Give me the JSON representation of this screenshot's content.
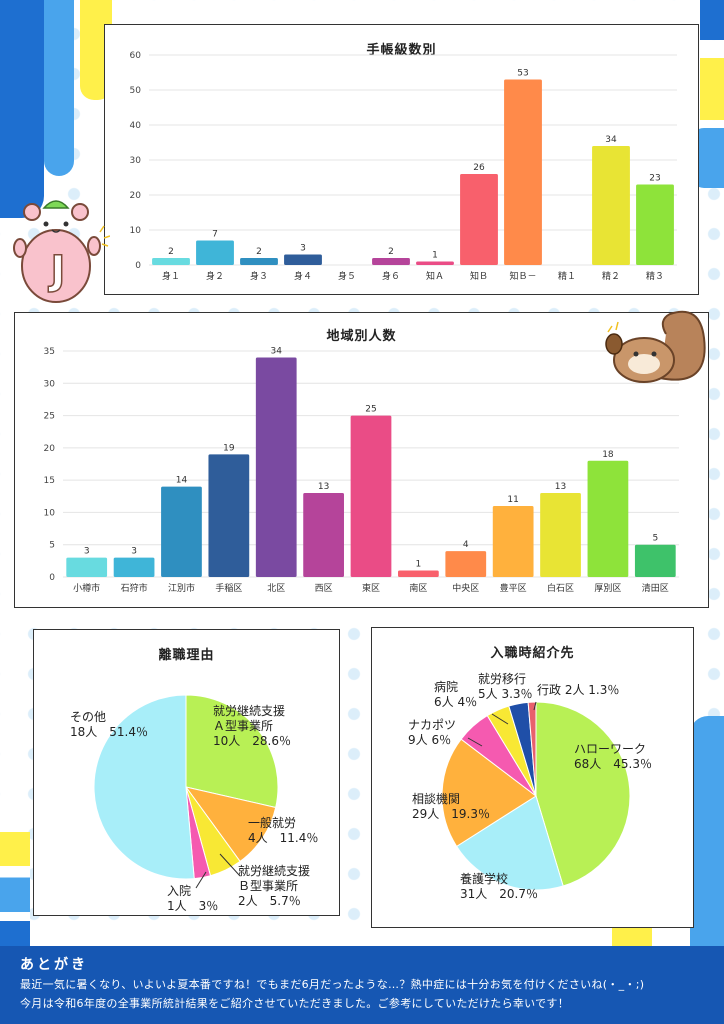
{
  "chart_data": [
    {
      "type": "bar",
      "title": "手帳級数別",
      "categories": [
        "身１",
        "身２",
        "身３",
        "身４",
        "身５",
        "身６",
        "知Ａ",
        "知Ｂ",
        "知Ｂ－",
        "精１",
        "精２",
        "精３"
      ],
      "values": [
        2,
        7,
        2,
        3,
        0,
        2,
        1,
        26,
        53,
        0,
        34,
        23
      ],
      "value_labels": [
        "2",
        "7",
        "2",
        "3",
        "",
        "2",
        "1",
        "26",
        "53",
        "",
        "34",
        "23"
      ],
      "colors": [
        "#68dbe0",
        "#3fb5d8",
        "#2f8fc0",
        "#2f5d9a",
        "#7a4aa1",
        "#b5449a",
        "#ea4c86",
        "#f8606c",
        "#ff8a4a",
        "#ffb13d",
        "#e8e434",
        "#8ee33a"
      ],
      "yticks": [
        "0",
        "10",
        "20",
        "30",
        "40",
        "50",
        "60"
      ],
      "ylim": [
        0,
        60
      ],
      "grid": true
    },
    {
      "type": "bar",
      "title": "地域別人数",
      "categories": [
        "小樽市",
        "石狩市",
        "江別市",
        "手稲区",
        "北区",
        "西区",
        "東区",
        "南区",
        "中央区",
        "豊平区",
        "白石区",
        "厚別区",
        "清田区"
      ],
      "values": [
        3,
        3,
        14,
        19,
        34,
        13,
        25,
        1,
        4,
        11,
        13,
        18,
        5
      ],
      "value_labels": [
        "3",
        "3",
        "14",
        "19",
        "34",
        "13",
        "25",
        "1",
        "4",
        "11",
        "13",
        "18",
        "5"
      ],
      "colors": [
        "#68dbe0",
        "#3fb5d8",
        "#2f8fc0",
        "#2f5d9a",
        "#7a4aa1",
        "#b5449a",
        "#ea4c86",
        "#f8606c",
        "#ff8a4a",
        "#ffb13d",
        "#e8e434",
        "#8ee33a",
        "#3ec26a"
      ],
      "yticks": [
        "0",
        "5",
        "10",
        "15",
        "20",
        "25",
        "30",
        "35"
      ],
      "ylim": [
        0,
        35
      ],
      "grid": true
    },
    {
      "type": "pie",
      "title": "離職理由",
      "slices": [
        {
          "name": "就労継続支援Ａ型事業所",
          "value": 10,
          "percent": 28.6,
          "color": "#b8f055"
        },
        {
          "name": "一般就労",
          "value": 4,
          "percent": 11.4,
          "color": "#ffb13d"
        },
        {
          "name": "就労継続支援Ｂ型事業所",
          "value": 2,
          "percent": 5.7,
          "color": "#f8e834"
        },
        {
          "name": "入院",
          "value": 1,
          "percent": 3,
          "color": "#f55ab0"
        },
        {
          "name": "その他",
          "value": 18,
          "percent": 51.4,
          "color": "#a8eef9"
        }
      ]
    },
    {
      "type": "pie",
      "title": "入職時紹介先",
      "slices": [
        {
          "name": "ハローワーク",
          "value": 68,
          "percent": 45.3,
          "color": "#b8f055"
        },
        {
          "name": "養護学校",
          "value": 31,
          "percent": 20.7,
          "color": "#a8eef9"
        },
        {
          "name": "相談機関",
          "value": 29,
          "percent": 19.3,
          "color": "#ffb13d"
        },
        {
          "name": "ナカポツ",
          "value": 9,
          "percent": 6,
          "color": "#f55ab0"
        },
        {
          "name": "病院",
          "value": 6,
          "percent": 4,
          "color": "#f8e834"
        },
        {
          "name": "就労移行",
          "value": 5,
          "percent": 3.3,
          "color": "#1f4fa8"
        },
        {
          "name": "行政",
          "value": 2,
          "percent": 1.3,
          "color": "#e8606c"
        }
      ]
    }
  ],
  "pie1_labels": {
    "a_line1": "就労継続支援",
    "a_line2": "Ａ型事業所",
    "a_line3": "10人　28.6％",
    "general_line1": "一般就労",
    "general_line2": "4人　11.4％",
    "b_line1": "就労継続支援",
    "b_line2": "Ｂ型事業所",
    "b_line3": "2人　5.7％",
    "hospital_line1": "入院",
    "hospital_line2": "1人　3％",
    "other_line1": "その他",
    "other_line2": "18人　51.4％"
  },
  "pie2_labels": {
    "hw_line1": "ハローワーク",
    "hw_line2": "68人　45.3％",
    "school_line1": "養護学校",
    "school_line2": "31人　20.7％",
    "consult_line1": "相談機関",
    "consult_line2": "29人　19.3％",
    "nakapotsu_line1": "ナカポツ",
    "nakapotsu_line2": "9人 6％",
    "hospital_line1": "病院",
    "hospital_line2": "6人 4％",
    "iko_line1": "就労移行",
    "iko_line2": "5人 3.3％",
    "gov": "行政 2人 1.3％"
  },
  "footer": {
    "heading": "あとがき",
    "line1": "最近一気に暑くなり、いよいよ夏本番ですね！でもまだ6月だったような…？熱中症には十分お気を付けくださいね(・_・;)",
    "line2": "今月は令和6年度の全事業所統計結果をご紹介させていただきました。ご参考にしていただけたら幸いです！"
  },
  "mascots": {
    "left_letter": "J"
  },
  "colors": {
    "footer_bg": "#1657b3",
    "deco_blue": "#1e6fd0",
    "deco_yellow": "#fff04a"
  }
}
